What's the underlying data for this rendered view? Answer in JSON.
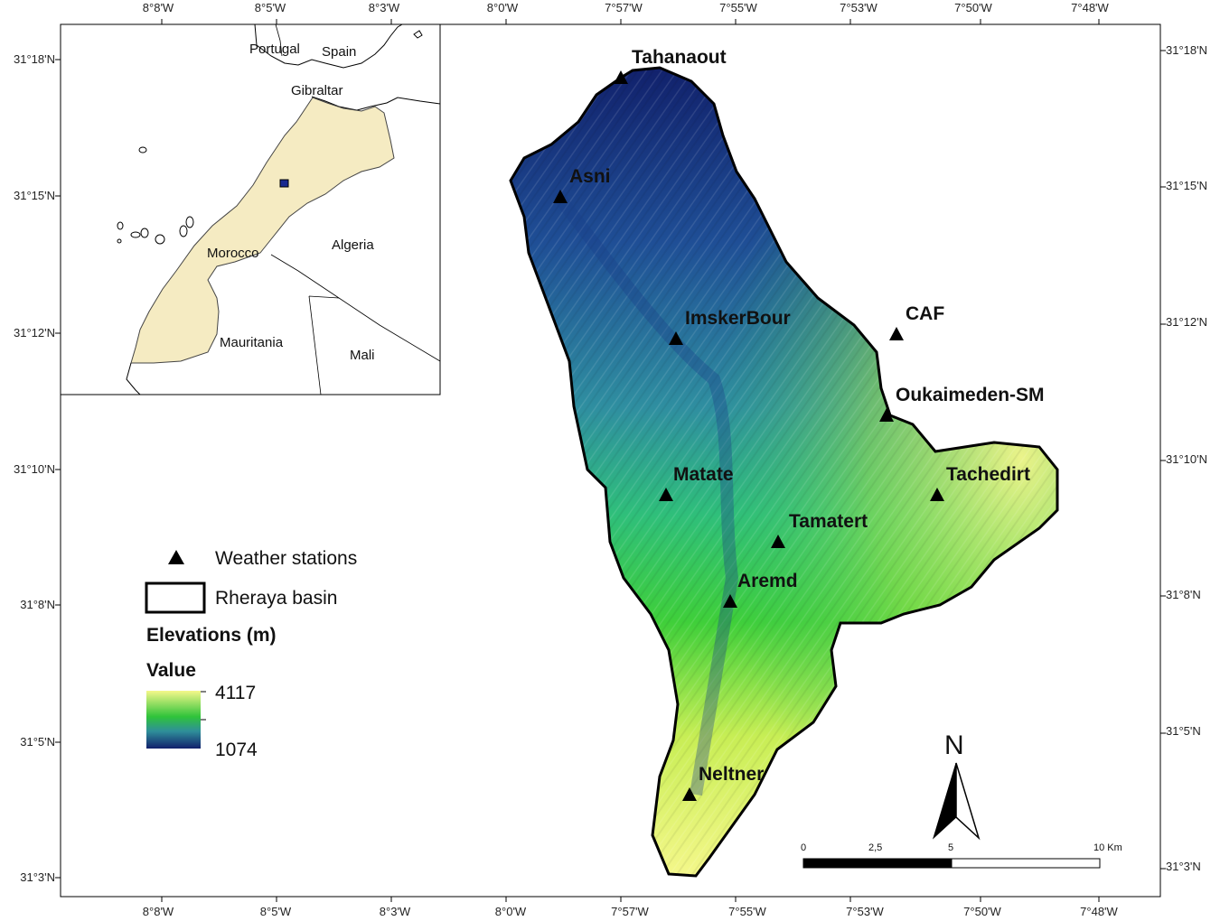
{
  "axes": {
    "top_lon": [
      "8°8'W",
      "8°5'W",
      "8°3'W",
      "8°0'W",
      "7°57'W",
      "7°55'W",
      "7°53'W",
      "7°50'W",
      "7°48'W"
    ],
    "bottom_lon": [
      "8°8'W",
      "8°5'W",
      "8°3'W",
      "8°0'W",
      "7°57'W",
      "7°55'W",
      "7°53'W",
      "7°50'W",
      "7°48'W"
    ],
    "left_lat": [
      "31°18'N",
      "31°15'N",
      "31°12'N",
      "31°10'N",
      "31°8'N",
      "31°5'N",
      "31°3'N"
    ],
    "right_lat": [
      "31°18'N",
      "31°15'N",
      "31°12'N",
      "31°10'N",
      "31°8'N",
      "31°5'N",
      "31°3'N"
    ]
  },
  "stations": [
    {
      "name": "Tahanaout"
    },
    {
      "name": "Asni"
    },
    {
      "name": "ImskerBour"
    },
    {
      "name": "CAF"
    },
    {
      "name": "Oukaimeden-SM"
    },
    {
      "name": "Matate"
    },
    {
      "name": "Tachedirt"
    },
    {
      "name": "Tamatert"
    },
    {
      "name": "Aremd"
    },
    {
      "name": "Neltner"
    }
  ],
  "inset": {
    "labels": [
      "Portugal",
      "Spain",
      "Gibraltar",
      "Morocco",
      "Algeria",
      "Mauritania",
      "Mali"
    ]
  },
  "legend": {
    "stations_label": "Weather stations",
    "basin_label": "Rheraya basin",
    "elevation_title": "Elevations (m)",
    "value_title": "Value",
    "max_value": "4117",
    "min_value": "1074",
    "colors": [
      "#f5f88a",
      "#2fc33a",
      "#2f8f9a",
      "#11206b"
    ]
  },
  "scale_bar": {
    "labels": [
      "0",
      "2,5",
      "5",
      "10 Km"
    ]
  },
  "north_arrow": {
    "label": "N"
  }
}
